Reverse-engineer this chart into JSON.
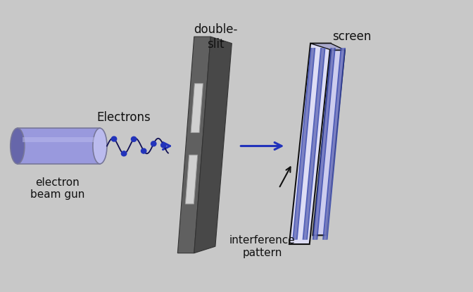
{
  "background_color": "#c8c8c8",
  "text_color": "#111111",
  "blue_color": "#2233bb",
  "electron_gun_body": "#9999dd",
  "electron_gun_dark": "#6666aa",
  "electron_gun_light": "#bbbbee",
  "slit_plate_color": "#606060",
  "slit_plate_edge": "#888888",
  "slit_plate_side": "#484848",
  "slit_white": "#cccccc",
  "screen_front": "#ddddf5",
  "screen_side": "#aaaacc",
  "screen_border": "#111111",
  "stripe_dark": "#3344aa",
  "stripe_light": "#9999cc",
  "labels": {
    "electrons": "Electrons",
    "beam_gun": "electron\nbeam gun",
    "double_slit": "double-\nslit",
    "screen": "screen",
    "interference": "interference\npattern"
  },
  "font_size": 11
}
